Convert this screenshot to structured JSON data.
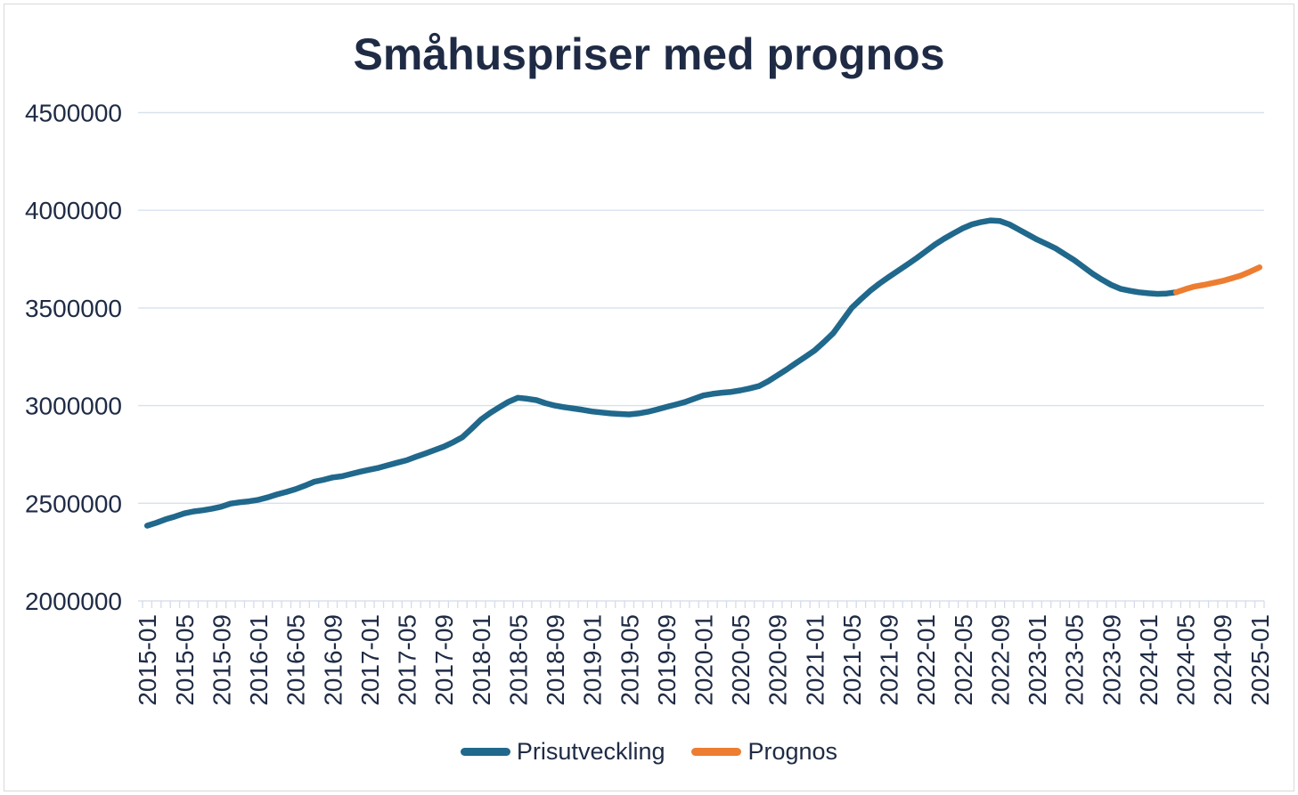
{
  "title": "Småhuspriser med prognos",
  "colors": {
    "price_line": "#20688c",
    "forecast_line": "#ed7d31",
    "text": "#1f2b45",
    "gridline": "#d8e1ee",
    "axis_tick": "#d5dce6",
    "border": "#d9d9d9",
    "background": "#ffffff"
  },
  "chart_data": {
    "type": "line",
    "title": "Småhuspriser med prognos",
    "xlabel": "",
    "ylabel": "",
    "x_start": "2015-01",
    "x_end": "2025-01",
    "x_points_monthly": true,
    "x_total_points": 121,
    "x_tick_labels": [
      "2015-01",
      "2015-05",
      "2015-09",
      "2016-01",
      "2016-05",
      "2016-09",
      "2017-01",
      "2017-05",
      "2017-09",
      "2018-01",
      "2018-05",
      "2018-09",
      "2019-01",
      "2019-05",
      "2019-09",
      "2020-01",
      "2020-05",
      "2020-09",
      "2021-01",
      "2021-05",
      "2021-09",
      "2022-01",
      "2022-05",
      "2022-09",
      "2023-01",
      "2023-05",
      "2023-09",
      "2024-01",
      "2024-05",
      "2024-09",
      "2025-01"
    ],
    "x_tick_label_every_n_months": 4,
    "y_ticks": [
      2000000,
      2500000,
      3000000,
      3500000,
      4000000,
      4500000
    ],
    "ylim": [
      2000000,
      4500000
    ],
    "grid": "horizontal",
    "legend_position": "bottom",
    "series": [
      {
        "name": "Prisutveckling",
        "color": "#20688c",
        "start_index": 0,
        "start_month": "2015-01",
        "end_month": "2024-04",
        "values": [
          2385000,
          2400000,
          2418000,
          2432000,
          2448000,
          2458000,
          2464000,
          2472000,
          2482000,
          2498000,
          2505000,
          2510000,
          2518000,
          2530000,
          2545000,
          2558000,
          2572000,
          2590000,
          2610000,
          2620000,
          2632000,
          2638000,
          2650000,
          2662000,
          2672000,
          2682000,
          2695000,
          2708000,
          2720000,
          2738000,
          2755000,
          2772000,
          2790000,
          2812000,
          2838000,
          2882000,
          2928000,
          2962000,
          2992000,
          3020000,
          3040000,
          3035000,
          3028000,
          3012000,
          3000000,
          2992000,
          2985000,
          2978000,
          2970000,
          2965000,
          2960000,
          2957000,
          2955000,
          2960000,
          2968000,
          2980000,
          2993000,
          3005000,
          3018000,
          3035000,
          3052000,
          3060000,
          3066000,
          3070000,
          3078000,
          3088000,
          3100000,
          3125000,
          3155000,
          3185000,
          3218000,
          3250000,
          3282000,
          3325000,
          3370000,
          3435000,
          3500000,
          3545000,
          3588000,
          3625000,
          3658000,
          3690000,
          3722000,
          3755000,
          3790000,
          3825000,
          3855000,
          3882000,
          3908000,
          3928000,
          3940000,
          3948000,
          3945000,
          3928000,
          3902000,
          3876000,
          3850000,
          3828000,
          3805000,
          3775000,
          3745000,
          3710000,
          3675000,
          3645000,
          3618000,
          3598000,
          3588000,
          3580000,
          3575000,
          3572000,
          3574000,
          3580000
        ]
      },
      {
        "name": "Prognos",
        "color": "#ed7d31",
        "start_index": 111,
        "start_month": "2024-04",
        "end_month": "2025-01",
        "values": [
          3580000,
          3596000,
          3610000,
          3618000,
          3628000,
          3638000,
          3652000,
          3666000,
          3686000,
          3708000
        ]
      }
    ]
  }
}
